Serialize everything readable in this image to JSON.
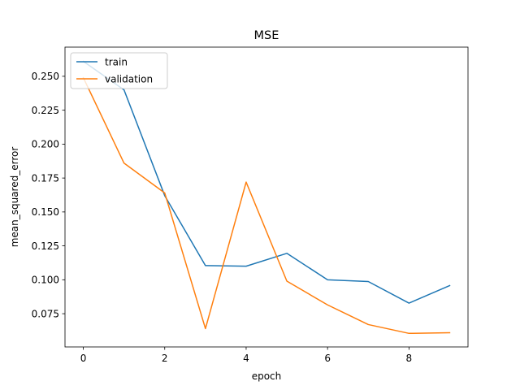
{
  "chart_data": {
    "type": "line",
    "title": "MSE",
    "xlabel": "epoch",
    "ylabel": "mean_squared_error",
    "x": [
      0,
      1,
      2,
      3,
      4,
      5,
      6,
      7,
      8,
      9
    ],
    "xlim": [
      -0.45,
      9.45
    ],
    "ylim": [
      0.0505,
      0.2715
    ],
    "xticks": [
      0,
      2,
      4,
      6,
      8
    ],
    "yticks": [
      0.075,
      0.1,
      0.125,
      0.15,
      0.175,
      0.2,
      0.225,
      0.25
    ],
    "ytick_labels": [
      "0.075",
      "0.100",
      "0.125",
      "0.150",
      "0.175",
      "0.200",
      "0.225",
      "0.250"
    ],
    "grid": false,
    "legend_position": "top-left",
    "series": [
      {
        "name": "train",
        "color": "#1f77b4",
        "values": [
          0.261,
          0.24,
          0.162,
          0.1105,
          0.11,
          0.1195,
          0.1,
          0.0987,
          0.0828,
          0.0957
        ]
      },
      {
        "name": "validation",
        "color": "#ff7f0e",
        "values": [
          0.249,
          0.186,
          0.164,
          0.064,
          0.172,
          0.099,
          0.0815,
          0.067,
          0.0605,
          0.061
        ]
      }
    ]
  }
}
